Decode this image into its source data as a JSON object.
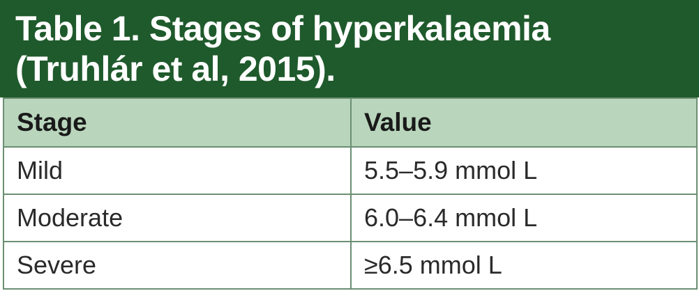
{
  "table": {
    "title_line1": "Table 1. Stages of hyperkalaemia",
    "title_line2": "(Truhlár et al, 2015).",
    "headers": [
      "Stage",
      "Value"
    ],
    "rows": [
      {
        "stage": "Mild",
        "value": "5.5–5.9 mmol L"
      },
      {
        "stage": "Moderate",
        "value": "6.0–6.4 mmol L"
      },
      {
        "stage": "Severe",
        "value": "≥6.5 mmol L"
      }
    ]
  },
  "colors": {
    "title_background": "#1f5a2c",
    "header_background": "#b9d6bd",
    "border": "#6b8f73"
  }
}
